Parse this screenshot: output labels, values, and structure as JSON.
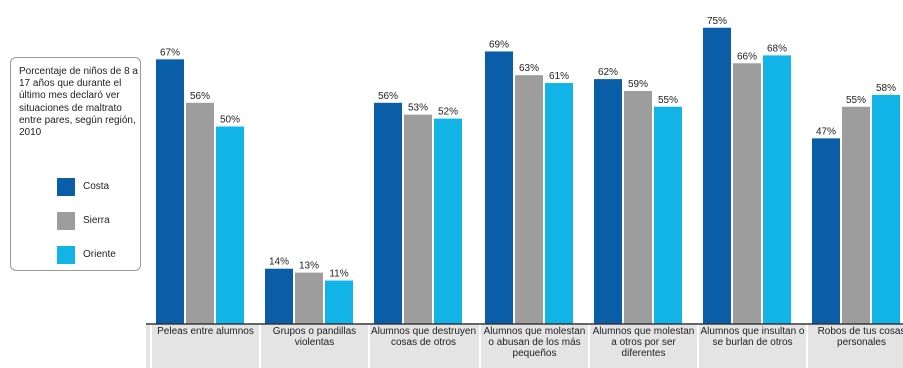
{
  "legend": {
    "title": "Porcentaje de niños de 8 a 17 años que durante el último mes declaró ver situaciones de maltrato entre pares, según región, 2010"
  },
  "chart_data": {
    "type": "bar",
    "title": "Porcentaje de niños de 8 a 17 años que durante el último mes declaró ver situaciones de maltrato entre pares, según región, 2010",
    "ylim": [
      0,
      80
    ],
    "grid": false,
    "legend_placement": "left",
    "categories": [
      "Peleas entre alumnos",
      "Grupos o pandillas violentas",
      "Alumnos que destruyen cosas de otros",
      "Alumnos que molestan o abusan de los más pequeños",
      "Alumnos que molestan a otros por ser diferentes",
      "Alumnos que insultan o se burlan de otros",
      "Robos de tus cosas personales"
    ],
    "series": [
      {
        "name": "Costa",
        "color": "#0a5ea8",
        "values": [
          67,
          14,
          56,
          69,
          62,
          75,
          47
        ],
        "labels": [
          "67%",
          "14%",
          "56%",
          "69%",
          "62%",
          "75%",
          "47%"
        ]
      },
      {
        "name": "Sierra",
        "color": "#9d9d9d",
        "values": [
          56,
          13,
          53,
          63,
          59,
          66,
          55
        ],
        "labels": [
          "56%",
          "13%",
          "53%",
          "63%",
          "59%",
          "66%",
          "55%"
        ]
      },
      {
        "name": "Oriente",
        "color": "#12b4e8",
        "values": [
          50,
          11,
          52,
          61,
          55,
          68,
          58
        ],
        "labels": [
          "50%",
          "11%",
          "52%",
          "61%",
          "55%",
          "68%",
          "58%"
        ]
      }
    ]
  }
}
